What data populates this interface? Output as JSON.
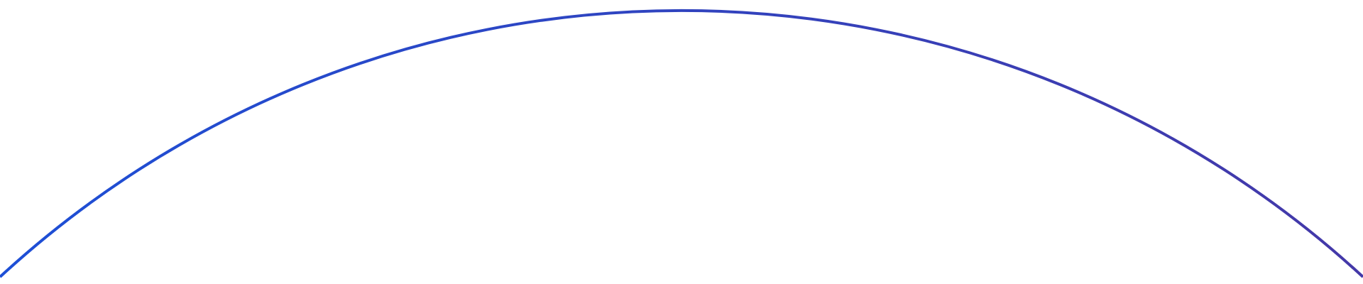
{
  "decoration": {
    "shape": "arc",
    "gradient_start_color": "#1d4fd6",
    "gradient_end_color": "#4438a8"
  }
}
